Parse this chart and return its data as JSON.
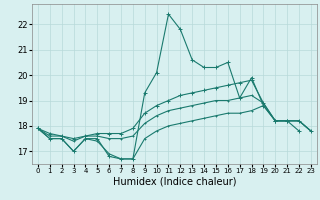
{
  "xlabel": "Humidex (Indice chaleur)",
  "x": [
    0,
    1,
    2,
    3,
    4,
    5,
    6,
    7,
    8,
    9,
    10,
    11,
    12,
    13,
    14,
    15,
    16,
    17,
    18,
    19,
    20,
    21,
    22,
    23
  ],
  "line_main": [
    17.9,
    17.5,
    17.5,
    17.0,
    17.5,
    17.5,
    16.8,
    16.7,
    16.7,
    19.3,
    20.1,
    22.4,
    21.8,
    20.6,
    20.3,
    20.3,
    20.5,
    19.1,
    19.9,
    18.8,
    18.2,
    18.2,
    17.8,
    null
  ],
  "line_upper": [
    17.9,
    17.7,
    17.6,
    17.5,
    17.6,
    17.7,
    17.7,
    17.7,
    17.9,
    18.5,
    18.8,
    19.0,
    19.2,
    19.3,
    19.4,
    19.5,
    19.6,
    19.7,
    19.8,
    18.9,
    18.2,
    18.2,
    18.2,
    17.8
  ],
  "line_mid": [
    17.9,
    17.6,
    17.6,
    17.4,
    17.6,
    17.6,
    17.5,
    17.5,
    17.6,
    18.1,
    18.4,
    18.6,
    18.7,
    18.8,
    18.9,
    19.0,
    19.0,
    19.1,
    19.2,
    18.9,
    18.2,
    18.2,
    18.2,
    17.8
  ],
  "line_lower": [
    17.9,
    17.5,
    17.5,
    17.0,
    17.5,
    17.4,
    16.9,
    16.7,
    16.7,
    17.5,
    17.8,
    18.0,
    18.1,
    18.2,
    18.3,
    18.4,
    18.5,
    18.5,
    18.6,
    18.8,
    18.2,
    18.2,
    18.2,
    17.8
  ],
  "line_color": "#1a7a6e",
  "bg_color": "#d8f0f0",
  "grid_color": "#b8dada",
  "ylim": [
    16.5,
    22.8
  ],
  "xlim": [
    -0.5,
    23.5
  ],
  "yticks": [
    17,
    18,
    19,
    20,
    21,
    22
  ],
  "xticks": [
    0,
    1,
    2,
    3,
    4,
    5,
    6,
    7,
    8,
    9,
    10,
    11,
    12,
    13,
    14,
    15,
    16,
    17,
    18,
    19,
    20,
    21,
    22,
    23
  ],
  "tick_labels": [
    "0",
    "1",
    "2",
    "3",
    "4",
    "5",
    "6",
    "7",
    "8",
    "9",
    "10",
    "11",
    "12",
    "13",
    "14",
    "15",
    "16",
    "17",
    "18",
    "19",
    "20",
    "21",
    "22",
    "23"
  ]
}
